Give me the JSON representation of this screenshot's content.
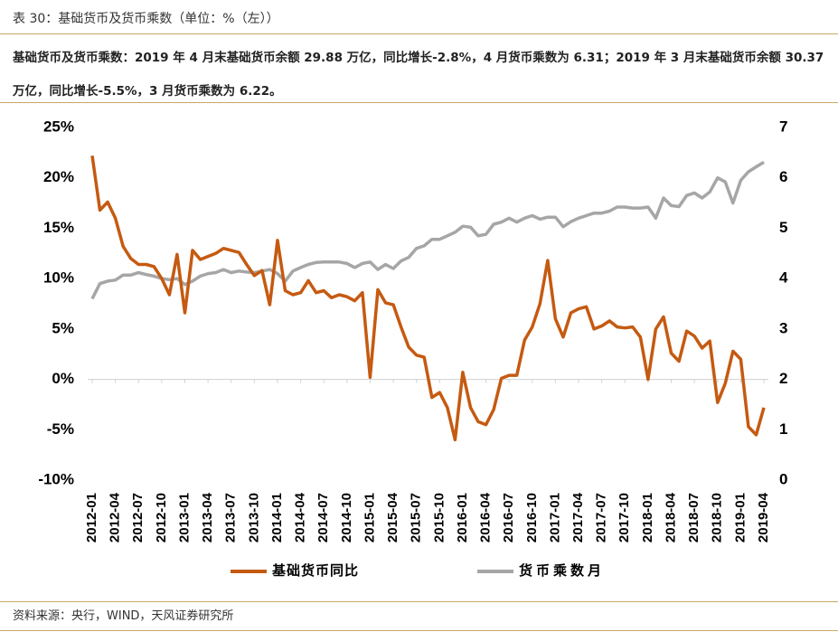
{
  "chart_data": {
    "type": "line",
    "title": "表 30：基础货币及货币乘数（单位：%（左））",
    "subtitle": "基础货币及货币乘数：2019 年 4 月末基础货币余额 29.88 万亿，同比增长-2.8%，4 月货币乘数为 6.31；2019 年 3 月末基础货币余额 30.37 万亿，同比增长-5.5%，3 月货币乘数为 6.22。",
    "source": "资料来源：央行，WIND，天风证券研究所",
    "categories": [
      "2012-01",
      null,
      null,
      "2012-04",
      null,
      null,
      "2012-07",
      null,
      null,
      "2012-10",
      null,
      null,
      "2013-01",
      null,
      null,
      "2013-04",
      null,
      null,
      "2013-07",
      null,
      null,
      "2013-10",
      null,
      null,
      "2014-01",
      null,
      null,
      "2014-04",
      null,
      null,
      "2014-07",
      null,
      null,
      "2014-10",
      null,
      null,
      "2015-01",
      null,
      null,
      "2015-04",
      null,
      null,
      "2015-07",
      null,
      null,
      "2015-10",
      null,
      null,
      "2016-01",
      null,
      null,
      "2016-04",
      null,
      null,
      "2016-07",
      null,
      null,
      "2016-10",
      null,
      null,
      "2017-01",
      null,
      null,
      "2017-04",
      null,
      null,
      "2017-07",
      null,
      null,
      "2017-10",
      null,
      null,
      "2018-01",
      null,
      null,
      "2018-04",
      null,
      null,
      "2018-07",
      null,
      null,
      "2018-10",
      null,
      null,
      "2019-01",
      null,
      null,
      "2019-04"
    ],
    "series": [
      {
        "name": "基础货币同比",
        "color": "#c55a11",
        "axis": "y",
        "values": [
          22.2,
          16.8,
          17.6,
          16.0,
          13.2,
          12.0,
          11.4,
          11.4,
          11.2,
          10.0,
          8.4,
          12.4,
          6.6,
          12.8,
          11.9,
          12.2,
          12.5,
          13.0,
          12.8,
          12.6,
          11.4,
          10.3,
          10.8,
          7.4,
          13.8,
          8.8,
          8.4,
          8.6,
          9.8,
          8.6,
          8.8,
          8.1,
          8.4,
          8.2,
          7.8,
          8.6,
          0.2,
          8.9,
          7.6,
          7.4,
          5.2,
          3.2,
          2.4,
          2.2,
          -1.8,
          -1.3,
          -2.8,
          -6.0,
          0.7,
          -2.8,
          -4.2,
          -4.5,
          -3.0,
          0.1,
          0.4,
          0.4,
          3.9,
          5.2,
          7.5,
          11.8,
          6.0,
          4.2,
          6.6,
          7.0,
          7.2,
          5.0,
          5.3,
          5.8,
          5.2,
          5.1,
          5.2,
          4.2,
          0.0,
          5.0,
          6.2,
          2.6,
          1.8,
          4.8,
          4.3,
          3.1,
          3.8,
          -2.3,
          -0.4,
          2.8,
          2.0,
          -4.7,
          -5.5,
          -2.8
        ]
      },
      {
        "name": "货币乘数月",
        "color": "#a6a6a6",
        "axis": "y2",
        "values": [
          3.6,
          3.9,
          3.95,
          3.97,
          4.07,
          4.07,
          4.12,
          4.08,
          4.05,
          4.0,
          3.98,
          4.0,
          3.88,
          3.95,
          4.05,
          4.1,
          4.12,
          4.18,
          4.12,
          4.15,
          4.13,
          4.12,
          4.15,
          4.18,
          4.1,
          3.95,
          4.15,
          4.22,
          4.28,
          4.32,
          4.33,
          4.33,
          4.33,
          4.3,
          4.22,
          4.3,
          4.33,
          4.18,
          4.28,
          4.2,
          4.35,
          4.42,
          4.6,
          4.65,
          4.78,
          4.78,
          4.85,
          4.92,
          5.04,
          5.02,
          4.85,
          4.88,
          5.08,
          5.12,
          5.2,
          5.12,
          5.2,
          5.25,
          5.18,
          5.22,
          5.22,
          5.03,
          5.13,
          5.2,
          5.25,
          5.3,
          5.3,
          5.34,
          5.42,
          5.42,
          5.4,
          5.4,
          5.42,
          5.2,
          5.6,
          5.45,
          5.43,
          5.65,
          5.7,
          5.6,
          5.72,
          6.0,
          5.92,
          5.5,
          5.95,
          6.12,
          6.22,
          6.31
        ]
      }
    ],
    "ylim": [
      -10,
      25
    ],
    "yticks": [
      {
        "value": -10,
        "label": "-10%"
      },
      {
        "value": -5,
        "label": "-5%"
      },
      {
        "value": 0,
        "label": "0%"
      },
      {
        "value": 5,
        "label": "5%"
      },
      {
        "value": 10,
        "label": "10%"
      },
      {
        "value": 15,
        "label": "15%"
      },
      {
        "value": 20,
        "label": "20%"
      },
      {
        "value": 25,
        "label": "25%"
      }
    ],
    "y2lim": [
      0,
      7
    ],
    "y2ticks": [
      0,
      1,
      2,
      3,
      4,
      5,
      6,
      7
    ],
    "grid": false,
    "legend": "bottom"
  }
}
